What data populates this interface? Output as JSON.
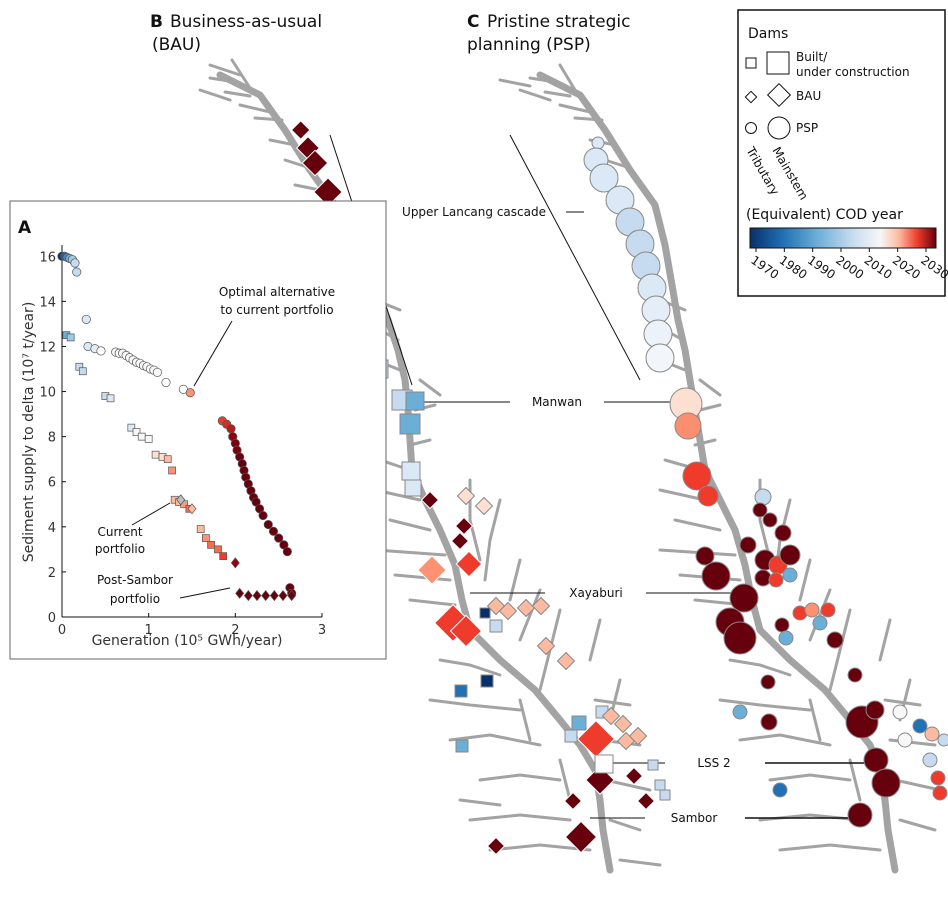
{
  "panels": {
    "a": {
      "letter": "A"
    },
    "b": {
      "letter": "B",
      "title_line1": "Business-as-usual",
      "title_line2": "(BAU)"
    },
    "c": {
      "letter": "C",
      "title_line1": "Pristine strategic",
      "title_line2": "planning (PSP)"
    }
  },
  "legend": {
    "title": "Dams",
    "built": "Built/",
    "built2": "under construction",
    "bau": "BAU",
    "psp": "PSP",
    "tributary": "Tributary",
    "mainstem": "Mainstem",
    "cod_title": "(Equivalent) COD year",
    "cod_ticks": [
      "1970",
      "1980",
      "1990",
      "2000",
      "2010",
      "2020",
      "2030"
    ],
    "colors": [
      "#08306b",
      "#2171b5",
      "#6baed6",
      "#c6dbef",
      "#f7f7f7",
      "#fcbba1",
      "#ef3b2c",
      "#67000d"
    ]
  },
  "map_labels": {
    "upper": "Upper Lancang cascade",
    "manwan": "Manwan",
    "xayaburi": "Xayaburi",
    "lss2": "LSS 2",
    "sambor": "Sambor"
  },
  "chart_annotations": {
    "optimal1": "Optimal alternative",
    "optimal2": "to current portfolio",
    "current1": "Current",
    "current2": "portfolio",
    "post1": "Post-Sambor",
    "post2": "portfolio"
  },
  "chart_data": {
    "type": "scatter",
    "xlabel": "Generation (10⁵ GWh/year)",
    "ylabel": "Sediment supply to delta (10⁷ t/year)",
    "xlim": [
      0,
      3
    ],
    "ylim": [
      0,
      16.5
    ],
    "xticks": [
      "0",
      "1",
      "2",
      "3"
    ],
    "yticks": [
      "0",
      "2",
      "4",
      "6",
      "8",
      "10",
      "12",
      "14",
      "16"
    ],
    "series": [
      {
        "marker": "circle",
        "points": [
          [
            0.0,
            16.0,
            "#08306b"
          ],
          [
            0.03,
            16.0,
            "#2c5d8f"
          ],
          [
            0.06,
            15.95,
            "#4a84b8"
          ],
          [
            0.09,
            15.9,
            "#6baed6"
          ],
          [
            0.12,
            15.85,
            "#9ecae1"
          ],
          [
            0.15,
            15.7,
            "#c6dbef"
          ],
          [
            0.17,
            15.3,
            "#c6dbef"
          ],
          [
            0.28,
            13.2,
            "#dbe9f6"
          ],
          [
            0.3,
            12.0,
            "#dbe9f6"
          ],
          [
            0.38,
            11.9,
            "#e5eef8"
          ],
          [
            0.45,
            11.8,
            "#ffffff"
          ],
          [
            0.62,
            11.75,
            "#f7f7f7"
          ],
          [
            0.66,
            11.7,
            "#f7f7f7"
          ],
          [
            0.7,
            11.7,
            "#f7f7f7"
          ],
          [
            0.74,
            11.6,
            "#f7f7f7"
          ],
          [
            0.78,
            11.5,
            "#f7f7f7"
          ],
          [
            0.82,
            11.4,
            "#f7f7f7"
          ],
          [
            0.86,
            11.3,
            "#f7f7f7"
          ],
          [
            0.9,
            11.25,
            "#f7f7f7"
          ],
          [
            0.94,
            11.15,
            "#f7f7f7"
          ],
          [
            0.98,
            11.1,
            "#f7f7f7"
          ],
          [
            1.02,
            11.0,
            "#f7f7f7"
          ],
          [
            1.06,
            10.95,
            "#f7f7f7"
          ],
          [
            1.1,
            10.85,
            "#f7f7f7"
          ],
          [
            1.2,
            10.4,
            "#ffffff"
          ],
          [
            1.4,
            10.1,
            "#ffffff"
          ],
          [
            1.48,
            9.95,
            "#fc9272"
          ],
          [
            1.85,
            8.7,
            "#ef3b2c"
          ],
          [
            1.9,
            8.55,
            "#d0302a"
          ],
          [
            1.95,
            8.35,
            "#b31d1d"
          ],
          [
            1.97,
            8.0,
            "#99000d"
          ],
          [
            2.0,
            7.7,
            "#7a0010"
          ],
          [
            2.02,
            7.4,
            "#7a0010"
          ],
          [
            2.05,
            7.1,
            "#67000d"
          ],
          [
            2.08,
            6.8,
            "#67000d"
          ],
          [
            2.1,
            6.5,
            "#67000d"
          ],
          [
            2.12,
            6.2,
            "#67000d"
          ],
          [
            2.15,
            5.9,
            "#67000d"
          ],
          [
            2.18,
            5.6,
            "#67000d"
          ],
          [
            2.21,
            5.3,
            "#67000d"
          ],
          [
            2.24,
            5.1,
            "#67000d"
          ],
          [
            2.28,
            4.8,
            "#67000d"
          ],
          [
            2.32,
            4.5,
            "#67000d"
          ],
          [
            2.38,
            4.1,
            "#67000d"
          ],
          [
            2.44,
            3.8,
            "#67000d"
          ],
          [
            2.5,
            3.5,
            "#67000d"
          ],
          [
            2.56,
            3.2,
            "#67000d"
          ],
          [
            2.6,
            2.9,
            "#67000d"
          ],
          [
            2.63,
            1.3,
            "#67000d"
          ],
          [
            2.65,
            1.05,
            "#67000d"
          ]
        ]
      },
      {
        "marker": "square",
        "points": [
          [
            0.05,
            12.5,
            "#6baed6"
          ],
          [
            0.1,
            12.4,
            "#9ecae1"
          ],
          [
            0.2,
            11.1,
            "#c6dbef"
          ],
          [
            0.24,
            10.9,
            "#c6dbef"
          ],
          [
            0.5,
            9.8,
            "#c6dbef"
          ],
          [
            0.56,
            9.7,
            "#dbe9f6"
          ],
          [
            0.8,
            8.4,
            "#dbe9f6"
          ],
          [
            0.86,
            8.2,
            "#f7f7f7"
          ],
          [
            0.92,
            8.0,
            "#f7f7f7"
          ],
          [
            1.0,
            7.9,
            "#f7f7f7"
          ],
          [
            1.08,
            7.2,
            "#fde0d2"
          ],
          [
            1.16,
            7.1,
            "#fde0d2"
          ],
          [
            1.22,
            7.0,
            "#fcbba1"
          ],
          [
            1.27,
            6.5,
            "#fc9272"
          ],
          [
            1.3,
            5.2,
            "#fcbba1"
          ],
          [
            1.35,
            5.1,
            "#fcbba1"
          ],
          [
            1.41,
            5.0,
            "#fb9a7e"
          ],
          [
            1.47,
            4.8,
            "#fb6a4a"
          ],
          [
            1.6,
            3.9,
            "#fcbba1"
          ],
          [
            1.66,
            3.5,
            "#fc9272"
          ],
          [
            1.72,
            3.2,
            "#fb6a4a"
          ],
          [
            1.8,
            3.0,
            "#fb6a4a"
          ],
          [
            1.86,
            2.7,
            "#ef3b2c"
          ]
        ]
      },
      {
        "marker": "diamond",
        "points": [
          [
            1.37,
            5.2,
            "#bdbdbd"
          ],
          [
            1.5,
            4.8,
            "#fcbba1"
          ],
          [
            2.0,
            2.4,
            "#99000d"
          ],
          [
            2.05,
            1.05,
            "#67000d"
          ],
          [
            2.15,
            0.95,
            "#67000d"
          ],
          [
            2.25,
            0.95,
            "#67000d"
          ],
          [
            2.35,
            0.95,
            "#67000d"
          ],
          [
            2.45,
            0.95,
            "#67000d"
          ],
          [
            2.55,
            0.95,
            "#67000d"
          ],
          [
            2.65,
            0.95,
            "#67000d"
          ]
        ]
      }
    ]
  }
}
